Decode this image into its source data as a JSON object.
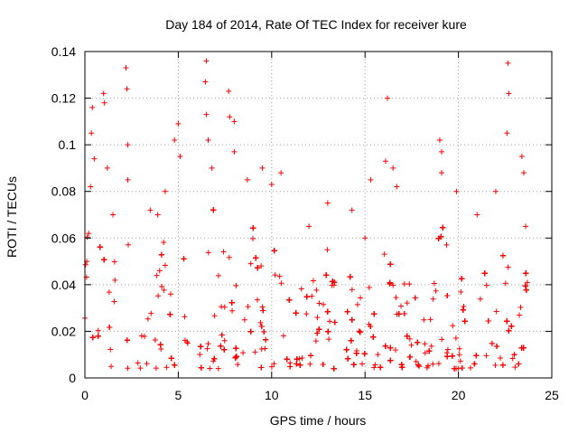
{
  "chart_data": {
    "type": "scatter",
    "title": "Day 184 of 2014, Rate Of TEC Index for receiver kure",
    "xlabel": "GPS time / hours",
    "ylabel": "ROTI / TECUs",
    "xlim": [
      0,
      25
    ],
    "ylim": [
      0,
      0.14
    ],
    "xticks": [
      0,
      5,
      10,
      15,
      20,
      25
    ],
    "xtick_labels": [
      "0",
      "5",
      "10",
      "15",
      "20",
      "25"
    ],
    "yticks": [
      0,
      0.02,
      0.04,
      0.06,
      0.08,
      0.1,
      0.12,
      0.14
    ],
    "ytick_labels": [
      "0",
      "0.02",
      "0.04",
      "0.06",
      "0.08",
      "0.1",
      "0.12",
      "0.14"
    ],
    "grid": true,
    "marker": "+",
    "color": "#ff0000",
    "data_gaps_hours": [
      [
        5.6,
        6.15
      ],
      [
        17.9,
        18.15
      ]
    ],
    "data_end_hours": 23.7,
    "series": [
      {
        "name": "ROTI",
        "points": [
          [
            0.1,
            0.05
          ],
          [
            0.2,
            0.062
          ],
          [
            0.3,
            0.082
          ],
          [
            0.35,
            0.105
          ],
          [
            0.4,
            0.116
          ],
          [
            0.5,
            0.094
          ],
          [
            1.0,
            0.122
          ],
          [
            1.05,
            0.118
          ],
          [
            1.2,
            0.09
          ],
          [
            1.5,
            0.07
          ],
          [
            2.2,
            0.133
          ],
          [
            2.25,
            0.124
          ],
          [
            2.3,
            0.1
          ],
          [
            2.3,
            0.085
          ],
          [
            3.5,
            0.072
          ],
          [
            3.9,
            0.07
          ],
          [
            4.3,
            0.08
          ],
          [
            4.8,
            0.102
          ],
          [
            5.0,
            0.109
          ],
          [
            5.1,
            0.095
          ],
          [
            6.5,
            0.136
          ],
          [
            6.45,
            0.127
          ],
          [
            6.5,
            0.113
          ],
          [
            6.6,
            0.102
          ],
          [
            6.8,
            0.09
          ],
          [
            7.7,
            0.123
          ],
          [
            7.75,
            0.112
          ],
          [
            8.0,
            0.11
          ],
          [
            8.0,
            0.097
          ],
          [
            8.7,
            0.085
          ],
          [
            9.5,
            0.09
          ],
          [
            10.0,
            0.083
          ],
          [
            10.5,
            0.088
          ],
          [
            12.0,
            0.065
          ],
          [
            13.0,
            0.075
          ],
          [
            14.3,
            0.072
          ],
          [
            15.0,
            0.06
          ],
          [
            15.3,
            0.085
          ],
          [
            16.1,
            0.093
          ],
          [
            16.2,
            0.12
          ],
          [
            16.5,
            0.09
          ],
          [
            16.7,
            0.082
          ],
          [
            19.0,
            0.102
          ],
          [
            19.1,
            0.097
          ],
          [
            19.1,
            0.088
          ],
          [
            19.9,
            0.08
          ],
          [
            21.0,
            0.07
          ],
          [
            22.0,
            0.08
          ],
          [
            22.6,
            0.105
          ],
          [
            22.65,
            0.135
          ],
          [
            22.7,
            0.122
          ],
          [
            23.4,
            0.095
          ],
          [
            23.5,
            0.088
          ],
          [
            23.6,
            0.065
          ]
        ]
      }
    ]
  }
}
